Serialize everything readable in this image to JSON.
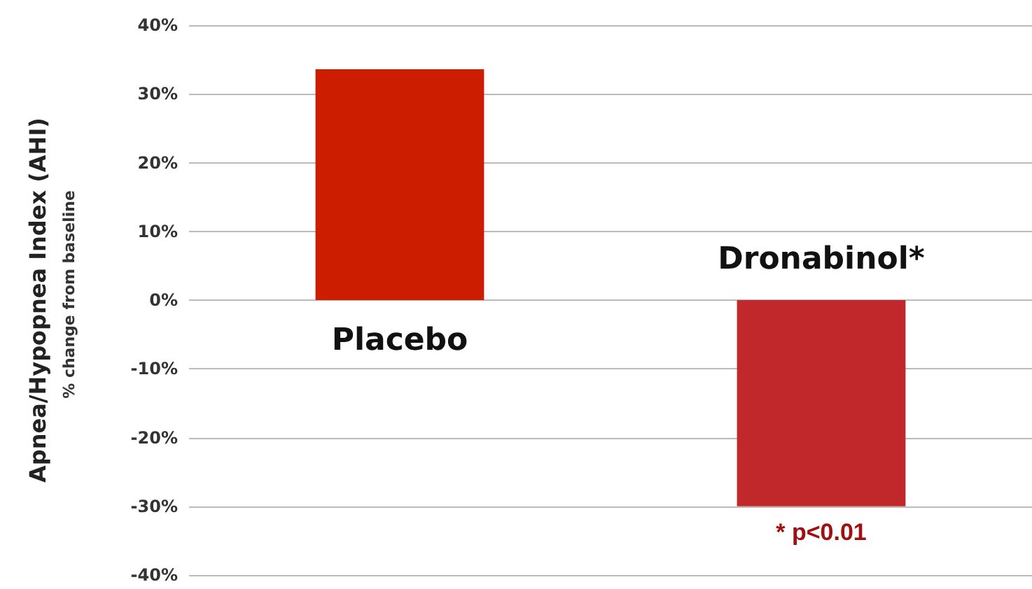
{
  "chart_data": {
    "type": "bar",
    "categories": [
      "Placebo",
      "Dronabinol*"
    ],
    "values": [
      33.6,
      -30
    ],
    "colors": [
      "#cc1d00",
      "#c0282b"
    ],
    "ylabel": "Apnea/Hypopnea Index (AHI)",
    "annotations": [
      "% change from baseline",
      {
        "text": "* p<0.01",
        "x": "Dronabinol*",
        "y": -30
      }
    ],
    "ylim": [
      -40,
      40
    ],
    "yticks": [
      {
        "value": -40,
        "label": "-40%"
      },
      {
        "value": -30,
        "label": "-30%"
      },
      {
        "value": -20,
        "label": "-20%"
      },
      {
        "value": -10,
        "label": "-10%"
      },
      {
        "value": 0,
        "label": "0%"
      },
      {
        "value": 10,
        "label": "10%"
      },
      {
        "value": 20,
        "label": "20%"
      },
      {
        "value": 30,
        "label": "30%"
      },
      {
        "value": 40,
        "label": "40%"
      }
    ],
    "grid": "y"
  }
}
